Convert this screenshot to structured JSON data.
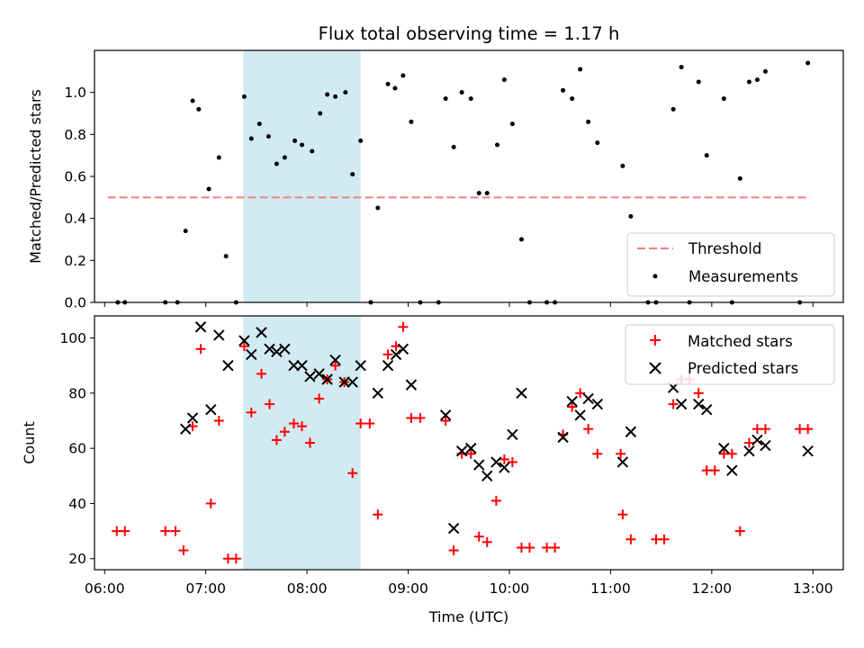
{
  "title": "Flux total observing time = 1.17 h",
  "colors": {
    "threshold": "#f08080",
    "measurement": "#000000",
    "matched": "#ff0000",
    "predicted": "#000000",
    "span": "#add8e6"
  },
  "chart_data": [
    {
      "type": "scatter",
      "ylabel": "Matched/Predicted stars",
      "xlim": [
        5.9,
        13.3
      ],
      "ylim": [
        0,
        1.2
      ],
      "xticks": [
        6,
        7,
        8,
        9,
        10,
        11,
        12,
        13
      ],
      "yticks": [
        0.0,
        0.2,
        0.4,
        0.6,
        0.8,
        1.0
      ],
      "ytick_labels": [
        "0.0",
        "0.2",
        "0.4",
        "0.6",
        "0.8",
        "1.0"
      ],
      "shaded_span": [
        7.37,
        8.53
      ],
      "legend_position": "bottom-right",
      "legend": [
        {
          "label": "Threshold",
          "marker": "dashed-line",
          "color": "#f08080"
        },
        {
          "label": "Measurements",
          "marker": "dot",
          "color": "#000000"
        }
      ],
      "threshold": {
        "y": 0.5,
        "x": [
          6.03,
          12.97
        ]
      },
      "measurements": [
        [
          6.13,
          0
        ],
        [
          6.2,
          0
        ],
        [
          6.6,
          0
        ],
        [
          6.72,
          0
        ],
        [
          6.8,
          0.34
        ],
        [
          6.87,
          0.96
        ],
        [
          6.93,
          0.92
        ],
        [
          7.03,
          0.54
        ],
        [
          7.13,
          0.69
        ],
        [
          7.2,
          0.22
        ],
        [
          7.3,
          0
        ],
        [
          7.38,
          0.98
        ],
        [
          7.45,
          0.78
        ],
        [
          7.53,
          0.85
        ],
        [
          7.62,
          0.79
        ],
        [
          7.7,
          0.66
        ],
        [
          7.78,
          0.69
        ],
        [
          7.88,
          0.77
        ],
        [
          7.95,
          0.75
        ],
        [
          8.05,
          0.72
        ],
        [
          8.13,
          0.9
        ],
        [
          8.2,
          0.99
        ],
        [
          8.28,
          0.98
        ],
        [
          8.38,
          1.0
        ],
        [
          8.45,
          0.61
        ],
        [
          8.53,
          0.77
        ],
        [
          8.63,
          0
        ],
        [
          8.7,
          0.45
        ],
        [
          8.8,
          1.04
        ],
        [
          8.87,
          1.02
        ],
        [
          8.95,
          1.08
        ],
        [
          9.03,
          0.86
        ],
        [
          9.12,
          0
        ],
        [
          9.3,
          0
        ],
        [
          9.37,
          0.97
        ],
        [
          9.45,
          0.74
        ],
        [
          9.53,
          1.0
        ],
        [
          9.62,
          0.97
        ],
        [
          9.7,
          0.52
        ],
        [
          9.78,
          0.52
        ],
        [
          9.88,
          0.75
        ],
        [
          9.95,
          1.06
        ],
        [
          10.03,
          0.85
        ],
        [
          10.12,
          0.3
        ],
        [
          10.2,
          0
        ],
        [
          10.37,
          0
        ],
        [
          10.45,
          0
        ],
        [
          10.53,
          1.01
        ],
        [
          10.62,
          0.97
        ],
        [
          10.7,
          1.11
        ],
        [
          10.78,
          0.86
        ],
        [
          10.87,
          0.76
        ],
        [
          11.12,
          0.65
        ],
        [
          11.2,
          0.41
        ],
        [
          11.37,
          0
        ],
        [
          11.45,
          0
        ],
        [
          11.62,
          0.92
        ],
        [
          11.7,
          1.12
        ],
        [
          11.78,
          0
        ],
        [
          11.87,
          1.05
        ],
        [
          11.95,
          0.7
        ],
        [
          12.12,
          0.97
        ],
        [
          12.2,
          0
        ],
        [
          12.28,
          0.59
        ],
        [
          12.37,
          1.05
        ],
        [
          12.45,
          1.06
        ],
        [
          12.53,
          1.1
        ],
        [
          12.87,
          0
        ],
        [
          12.95,
          1.14
        ]
      ]
    },
    {
      "type": "scatter",
      "xlabel": "Time (UTC)",
      "ylabel": "Count",
      "xlim": [
        5.9,
        13.3
      ],
      "ylim": [
        16,
        108
      ],
      "xticks": [
        6,
        7,
        8,
        9,
        10,
        11,
        12,
        13
      ],
      "xtick_labels": [
        "06:00",
        "07:00",
        "08:00",
        "09:00",
        "10:00",
        "11:00",
        "12:00",
        "13:00"
      ],
      "yticks": [
        20,
        40,
        60,
        80,
        100
      ],
      "ytick_labels": [
        "20",
        "40",
        "60",
        "80",
        "100"
      ],
      "shaded_span": [
        7.37,
        8.53
      ],
      "legend_position": "top-right",
      "series": [
        {
          "name": "Matched stars",
          "marker": "plus",
          "color": "#ff0000",
          "points": [
            [
              6.12,
              30
            ],
            [
              6.2,
              30
            ],
            [
              6.6,
              30
            ],
            [
              6.7,
              30
            ],
            [
              6.78,
              23
            ],
            [
              6.87,
              68
            ],
            [
              6.95,
              96
            ],
            [
              7.05,
              40
            ],
            [
              7.13,
              70
            ],
            [
              7.22,
              20
            ],
            [
              7.3,
              20
            ],
            [
              7.38,
              97
            ],
            [
              7.45,
              73
            ],
            [
              7.55,
              87
            ],
            [
              7.63,
              76
            ],
            [
              7.7,
              63
            ],
            [
              7.78,
              66
            ],
            [
              7.87,
              69
            ],
            [
              7.95,
              68
            ],
            [
              8.03,
              62
            ],
            [
              8.12,
              78
            ],
            [
              8.2,
              85
            ],
            [
              8.28,
              90
            ],
            [
              8.37,
              84
            ],
            [
              8.45,
              51
            ],
            [
              8.53,
              69
            ],
            [
              8.62,
              69
            ],
            [
              8.7,
              36
            ],
            [
              8.8,
              94
            ],
            [
              8.88,
              97
            ],
            [
              8.95,
              104
            ],
            [
              9.03,
              71
            ],
            [
              9.12,
              71
            ],
            [
              9.37,
              70
            ],
            [
              9.45,
              23
            ],
            [
              9.53,
              58
            ],
            [
              9.62,
              58
            ],
            [
              9.7,
              28
            ],
            [
              9.78,
              26
            ],
            [
              9.87,
              41
            ],
            [
              9.95,
              56
            ],
            [
              10.03,
              55
            ],
            [
              10.12,
              24
            ],
            [
              10.2,
              24
            ],
            [
              10.37,
              24
            ],
            [
              10.45,
              24
            ],
            [
              10.53,
              65
            ],
            [
              10.62,
              75
            ],
            [
              10.7,
              80
            ],
            [
              10.78,
              67
            ],
            [
              10.87,
              58
            ],
            [
              11.1,
              58
            ],
            [
              11.12,
              36
            ],
            [
              11.2,
              27
            ],
            [
              11.45,
              27
            ],
            [
              11.53,
              27
            ],
            [
              11.62,
              76
            ],
            [
              11.7,
              85
            ],
            [
              11.78,
              85
            ],
            [
              11.87,
              80
            ],
            [
              11.95,
              52
            ],
            [
              12.03,
              52
            ],
            [
              12.12,
              58
            ],
            [
              12.2,
              58
            ],
            [
              12.28,
              30
            ],
            [
              12.37,
              62
            ],
            [
              12.45,
              67
            ],
            [
              12.53,
              67
            ],
            [
              12.87,
              67
            ],
            [
              12.95,
              67
            ]
          ]
        },
        {
          "name": "Predicted stars",
          "marker": "x",
          "color": "#000000",
          "points": [
            [
              6.8,
              67
            ],
            [
              6.87,
              71
            ],
            [
              6.95,
              104
            ],
            [
              7.05,
              74
            ],
            [
              7.13,
              101
            ],
            [
              7.22,
              90
            ],
            [
              7.38,
              99
            ],
            [
              7.45,
              94
            ],
            [
              7.55,
              102
            ],
            [
              7.63,
              96
            ],
            [
              7.7,
              95
            ],
            [
              7.78,
              96
            ],
            [
              7.87,
              90
            ],
            [
              7.95,
              90
            ],
            [
              8.03,
              86
            ],
            [
              8.12,
              87
            ],
            [
              8.2,
              85
            ],
            [
              8.28,
              92
            ],
            [
              8.37,
              84
            ],
            [
              8.45,
              84
            ],
            [
              8.53,
              90
            ],
            [
              8.7,
              80
            ],
            [
              8.8,
              90
            ],
            [
              8.88,
              94
            ],
            [
              8.95,
              96
            ],
            [
              9.03,
              83
            ],
            [
              9.37,
              72
            ],
            [
              9.45,
              31
            ],
            [
              9.53,
              59
            ],
            [
              9.62,
              60
            ],
            [
              9.7,
              54
            ],
            [
              9.78,
              50
            ],
            [
              9.87,
              55
            ],
            [
              9.95,
              53
            ],
            [
              10.03,
              65
            ],
            [
              10.12,
              80
            ],
            [
              10.53,
              64
            ],
            [
              10.62,
              77
            ],
            [
              10.7,
              72
            ],
            [
              10.78,
              78
            ],
            [
              10.87,
              76
            ],
            [
              11.12,
              55
            ],
            [
              11.2,
              66
            ],
            [
              11.62,
              82
            ],
            [
              11.7,
              76
            ],
            [
              11.87,
              76
            ],
            [
              11.95,
              74
            ],
            [
              12.12,
              60
            ],
            [
              12.2,
              52
            ],
            [
              12.37,
              59
            ],
            [
              12.45,
              63
            ],
            [
              12.53,
              61
            ],
            [
              12.95,
              59
            ]
          ]
        }
      ]
    }
  ]
}
